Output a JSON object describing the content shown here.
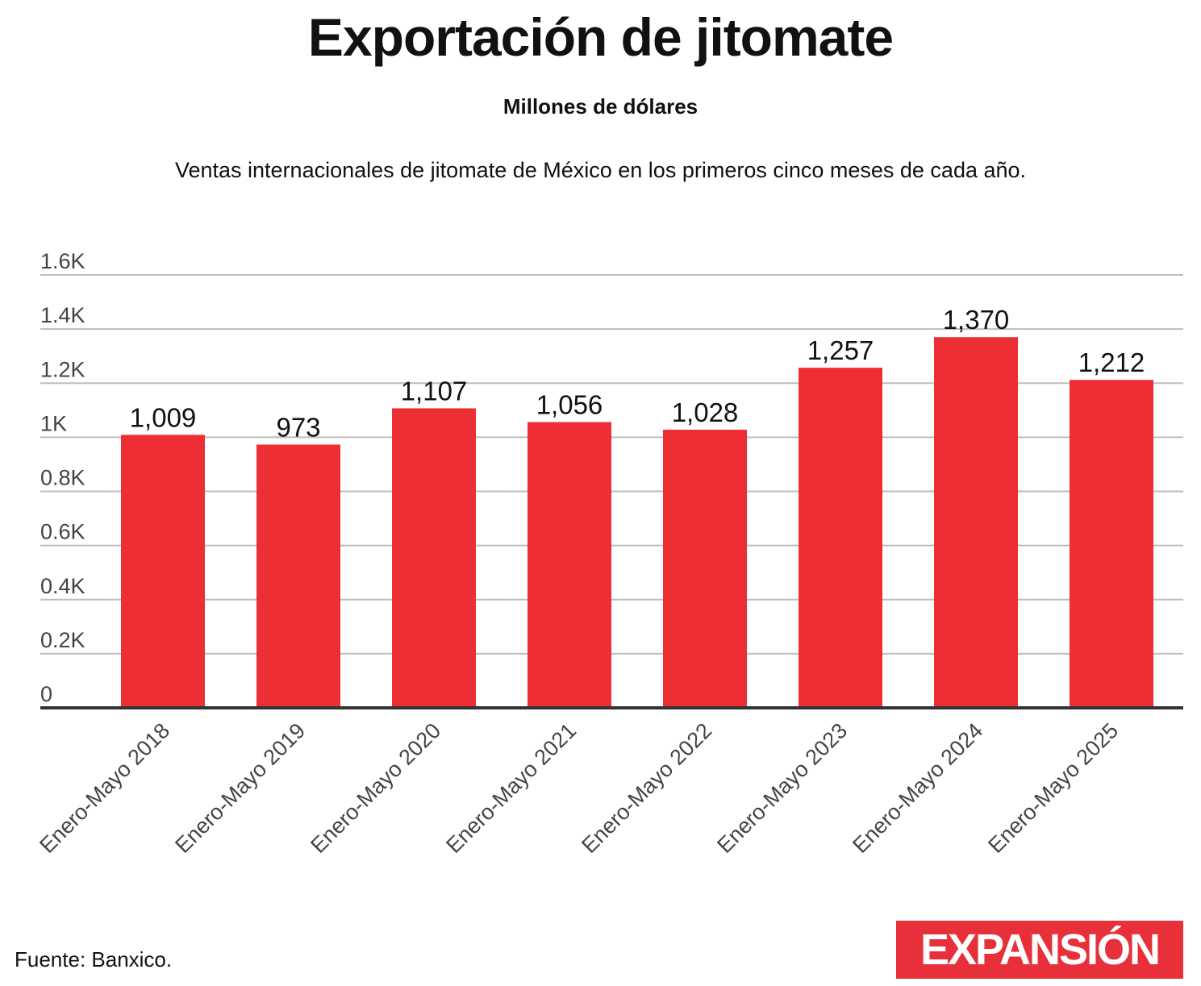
{
  "title": "Exportación de jitomate",
  "subtitle": "Millones de dólares",
  "description": "Ventas internacionales de jitomate de México en los primeros cinco meses de cada año.",
  "source": "Fuente: Banxico.",
  "logo": {
    "text": "EXPANSIÓN"
  },
  "colors": {
    "bar": "#ee2e35",
    "grid": "#bdbdbd",
    "axis": "#333333",
    "logo_bg": "#e8303a"
  },
  "chart_data": {
    "type": "bar",
    "title": "Exportación de jitomate",
    "ylabel": "Millones de dólares",
    "xlabel": "",
    "ylim": [
      0,
      1600
    ],
    "grid": true,
    "yticks": [
      0,
      200,
      400,
      600,
      800,
      1000,
      1200,
      1400,
      1600
    ],
    "ytick_labels": [
      "0",
      "0.2K",
      "0.4K",
      "0.6K",
      "0.8K",
      "1K",
      "1.2K",
      "1.4K",
      "1.6K"
    ],
    "categories": [
      "Enero-Mayo 2018",
      "Enero-Mayo 2019",
      "Enero-Mayo 2020",
      "Enero-Mayo 2021",
      "Enero-Mayo 2022",
      "Enero-Mayo 2023",
      "Enero-Mayo 2024",
      "Enero-Mayo 2025"
    ],
    "values": [
      1009,
      973,
      1107,
      1056,
      1028,
      1257,
      1370,
      1212
    ],
    "value_labels": [
      "1,009",
      "973",
      "1,107",
      "1,056",
      "1,028",
      "1,257",
      "1,370",
      "1,212"
    ]
  }
}
